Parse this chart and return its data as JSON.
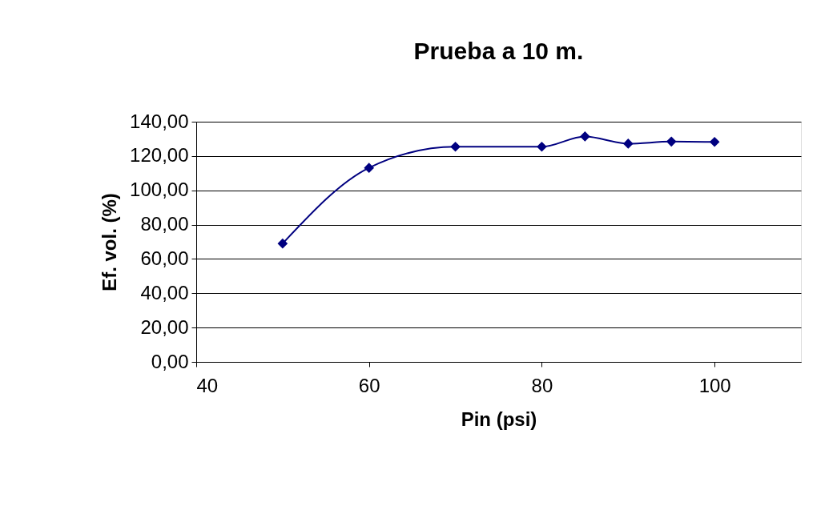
{
  "chart_data": {
    "type": "line",
    "title": "Prueba a 10 m.",
    "xlabel": "Pin (psi)",
    "ylabel": "Ef. vol. (%)",
    "x": [
      50,
      60,
      70,
      80,
      85,
      90,
      95,
      100
    ],
    "series": [
      {
        "color": "#000080",
        "values": [
          69.0,
          113.1,
          125.4,
          125.4,
          131.4,
          127.2,
          128.4,
          128.2
        ]
      }
    ],
    "xlim": [
      40,
      110
    ],
    "xticks": [
      40,
      60,
      80,
      100
    ],
    "ylim": [
      0,
      140
    ],
    "yticks": [
      {
        "value": 0,
        "label": "0,00"
      },
      {
        "value": 20,
        "label": "20,00"
      },
      {
        "value": 40,
        "label": "40,00"
      },
      {
        "value": 60,
        "label": "60,00"
      },
      {
        "value": 80,
        "label": "80,00"
      },
      {
        "value": 100,
        "label": "100,00"
      },
      {
        "value": 120,
        "label": "120,00"
      },
      {
        "value": 140,
        "label": "140,00"
      }
    ],
    "grid": "y",
    "marker": "diamond",
    "line_style": "solid"
  }
}
